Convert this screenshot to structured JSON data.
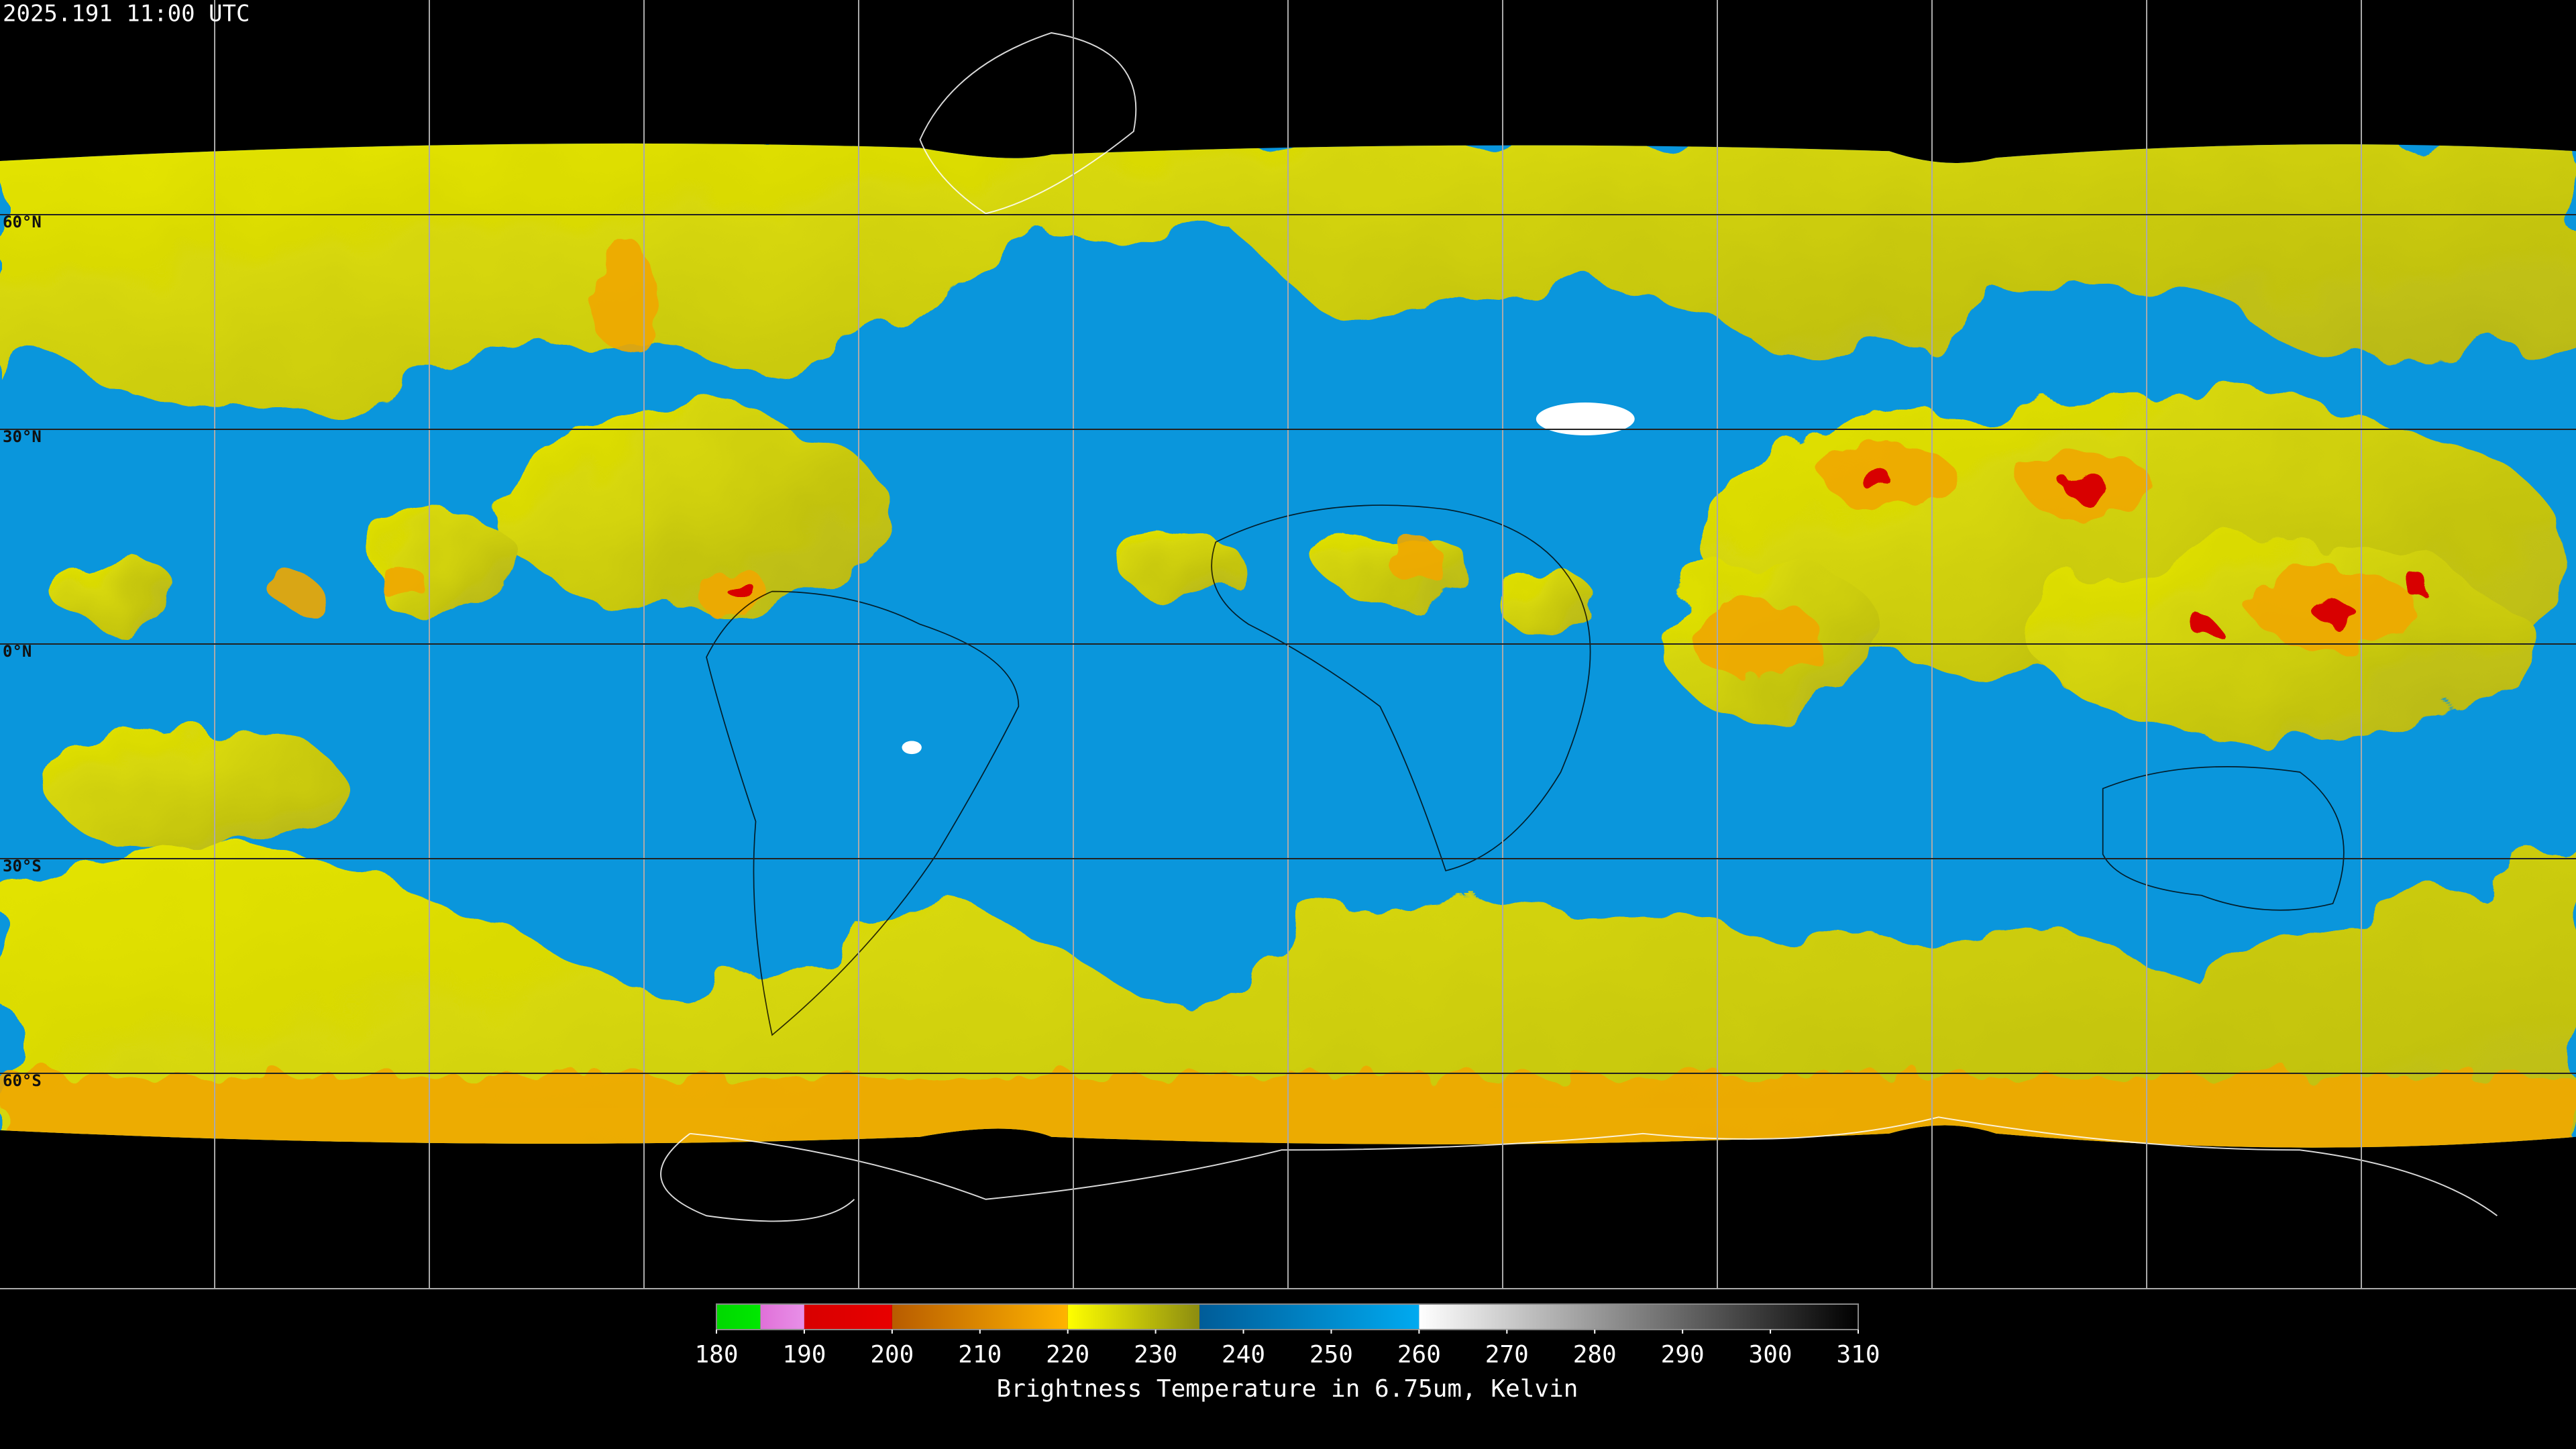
{
  "header": {
    "timestamp": "2025.191 11:00 UTC"
  },
  "latitude_lines": [
    {
      "lat": 60,
      "label": "60°N"
    },
    {
      "lat": 30,
      "label": "30°N"
    },
    {
      "lat": 0,
      "label": "0°N"
    },
    {
      "lat": -30,
      "label": "30°S"
    },
    {
      "lat": -60,
      "label": "60°S"
    }
  ],
  "colorbar": {
    "range": [
      180,
      310
    ],
    "ticks": [
      180,
      190,
      200,
      210,
      220,
      230,
      240,
      250,
      260,
      270,
      280,
      290,
      300,
      310
    ],
    "segments": [
      {
        "from": 180,
        "to": 185,
        "colors": [
          "#00d800",
          "#00e800"
        ]
      },
      {
        "from": 185,
        "to": 190,
        "colors": [
          "#e070d8",
          "#e890e8"
        ]
      },
      {
        "from": 190,
        "to": 200,
        "colors": [
          "#d80000",
          "#e80000"
        ]
      },
      {
        "from": 200,
        "to": 220,
        "colors": [
          "#b85c00",
          "#ffb400"
        ]
      },
      {
        "from": 220,
        "to": 235,
        "colors": [
          "#ffff00",
          "#8c8c10"
        ]
      },
      {
        "from": 235,
        "to": 260,
        "colors": [
          "#005c98",
          "#00aaf0"
        ]
      },
      {
        "from": 260,
        "to": 310,
        "colors": [
          "#ffffff",
          "#000000"
        ]
      }
    ],
    "label": "Brightness Temperature in 6.75um, Kelvin"
  }
}
